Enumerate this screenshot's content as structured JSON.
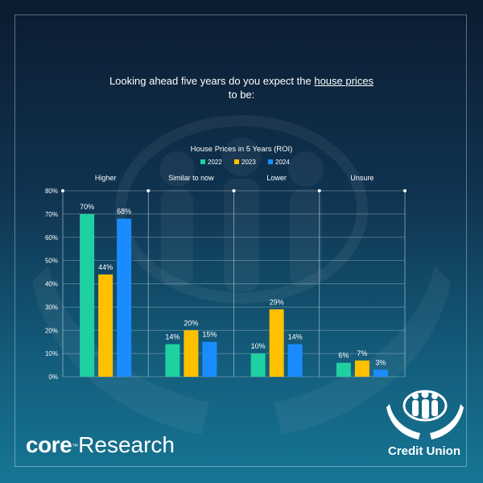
{
  "headline": {
    "prefix": "Looking ahead five years do you expect the ",
    "underlined": "house prices",
    "suffix": "to be:"
  },
  "branding": {
    "core": "core",
    "tm": "™",
    "research": "Research",
    "partner": "Credit Union"
  },
  "colors": {
    "2022": "#1fd1a0",
    "2023": "#ffc000",
    "2024": "#1a8cff"
  },
  "chart_data": {
    "type": "bar",
    "title": "House Prices in 5 Years (ROI)",
    "categories": [
      "Higher",
      "Similar to now",
      "Lower",
      "Unsure"
    ],
    "series": [
      {
        "name": "2022",
        "values": [
          70,
          14,
          10,
          6
        ]
      },
      {
        "name": "2023",
        "values": [
          44,
          20,
          29,
          7
        ]
      },
      {
        "name": "2024",
        "values": [
          68,
          15,
          14,
          3
        ]
      }
    ],
    "ylim": [
      0,
      80
    ],
    "yticks": [
      "0%",
      "10%",
      "20%",
      "30%",
      "40%",
      "50%",
      "60%",
      "70%",
      "80%"
    ],
    "value_suffix": "%",
    "legend": "top-center",
    "grid": true
  }
}
